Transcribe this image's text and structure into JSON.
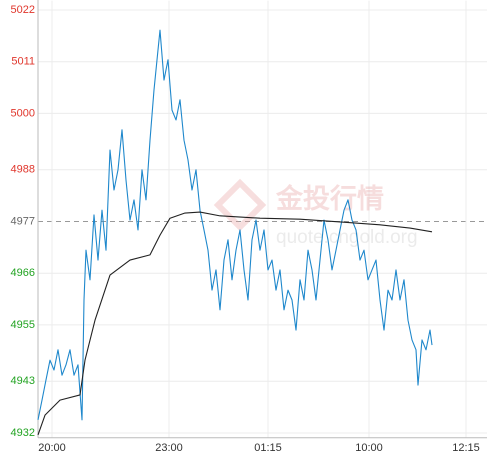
{
  "chart_data": {
    "type": "line",
    "watermark": {
      "title": "金投行情",
      "url": "quote.cngold.org"
    },
    "xlim": [
      0,
      449
    ],
    "xticks": [
      {
        "value": 14,
        "label": "20:00"
      },
      {
        "value": 131,
        "label": "23:00"
      },
      {
        "value": 230,
        "label": "01:15"
      },
      {
        "value": 331,
        "label": "10:00"
      },
      {
        "value": 428,
        "label": "12:15"
      }
    ],
    "ylim": [
      4931,
      5024
    ],
    "yticks": [
      4932,
      4943,
      4955,
      4966,
      4977,
      4988,
      5000,
      5011,
      5022
    ],
    "reference": 4977,
    "up_color": "#e0362c",
    "down_color": "#22a322",
    "reference_color": "#666666",
    "grid": true,
    "series": [
      {
        "name": "price",
        "color": "#1f88cc",
        "x": [
          0,
          4,
          8,
          12,
          16,
          20,
          24,
          28,
          32,
          36,
          40,
          44,
          46,
          48,
          52,
          56,
          60,
          64,
          68,
          72,
          76,
          80,
          84,
          88,
          92,
          96,
          100,
          104,
          108,
          112,
          116,
          120,
          122,
          126,
          130,
          134,
          138,
          142,
          146,
          150,
          154,
          158,
          162,
          166,
          170,
          174,
          178,
          182,
          186,
          190,
          194,
          198,
          202,
          206,
          210,
          214,
          218,
          222,
          226,
          230,
          234,
          238,
          242,
          246,
          250,
          254,
          258,
          262,
          266,
          270,
          274,
          278,
          282,
          286,
          290,
          294,
          298,
          302,
          306,
          310,
          314,
          318,
          322,
          326,
          330,
          334,
          338,
          342,
          346,
          350,
          354,
          358,
          362,
          366,
          370,
          374,
          378,
          380,
          384,
          388,
          392,
          394
        ],
        "values": [
          4934.8,
          4939,
          4943.3,
          4947.5,
          4945.4,
          4949.7,
          4944.3,
          4946.5,
          4949.7,
          4944.3,
          4946.5,
          4934.8,
          4960.3,
          4970.9,
          4964.6,
          4978.4,
          4968.8,
          4979.4,
          4970.9,
          4992.2,
          4983.7,
          4988,
          4996.5,
          4985.8,
          4977.3,
          4981.6,
          4975.2,
          4988,
          4981.6,
          4994.3,
          5005,
          5013.5,
          5017.7,
          5007.1,
          5011.4,
          5000.7,
          4998.6,
          5002.9,
          4994.3,
          4990.1,
          4983.7,
          4988,
          4979.4,
          4975.2,
          4970.9,
          4962.4,
          4966.7,
          4958.2,
          4968.8,
          4973.1,
          4964.6,
          4970.9,
          4975.2,
          4966.7,
          4960.3,
          4973.1,
          4977.3,
          4970.9,
          4975.2,
          4966.7,
          4968.8,
          4962.4,
          4966.7,
          4958.2,
          4962.4,
          4960.3,
          4953.9,
          4964.6,
          4960.3,
          4970.9,
          4966.7,
          4960.3,
          4968.8,
          4977.3,
          4973.1,
          4966.7,
          4970.9,
          4975.2,
          4979.4,
          4981.6,
          4977.3,
          4975.2,
          4968.8,
          4970.9,
          4964.6,
          4966.7,
          4968.8,
          4960.3,
          4953.9,
          4962.4,
          4960.3,
          4966.7,
          4960.3,
          4964.6,
          4956,
          4951.8,
          4949.7,
          4942.2,
          4951.8,
          4949.7,
          4953.9,
          4950.7
        ]
      },
      {
        "name": "average",
        "color": "#222222",
        "x": [
          0,
          7,
          22,
          42,
          47,
          57,
          72,
          92,
          112,
          122,
          132,
          147,
          162,
          182,
          222,
          262,
          302,
          342,
          372,
          394
        ],
        "values": [
          4931.6,
          4935.8,
          4939,
          4940.1,
          4947.5,
          4956,
          4965.6,
          4968.8,
          4969.9,
          4974.1,
          4977.7,
          4978.8,
          4979,
          4978.2,
          4977.7,
          4977.5,
          4976.9,
          4976.3,
          4975.6,
          4974.8
        ]
      }
    ]
  }
}
